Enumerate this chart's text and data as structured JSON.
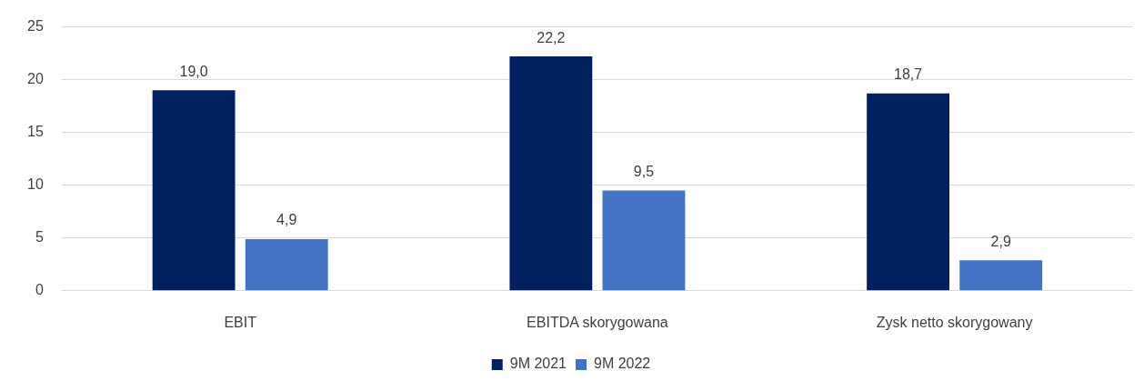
{
  "chart_data": {
    "type": "bar",
    "categories": [
      "EBIT",
      "EBITDA skorygowana",
      "Zysk netto skorygowany"
    ],
    "series": [
      {
        "name": "9M 2021",
        "color": "#002060",
        "values": [
          19.0,
          22.2,
          18.7
        ],
        "value_labels": [
          "19,0",
          "22,2",
          "18,7"
        ]
      },
      {
        "name": "9M 2022",
        "color": "#4472c4",
        "values": [
          4.9,
          9.5,
          2.9
        ],
        "value_labels": [
          "4,9",
          "9,5",
          "2,9"
        ]
      }
    ],
    "ylim": [
      0,
      25
    ],
    "yticks": [
      0,
      5,
      10,
      15,
      20,
      25
    ],
    "grid": "y",
    "legend": "bottom"
  }
}
